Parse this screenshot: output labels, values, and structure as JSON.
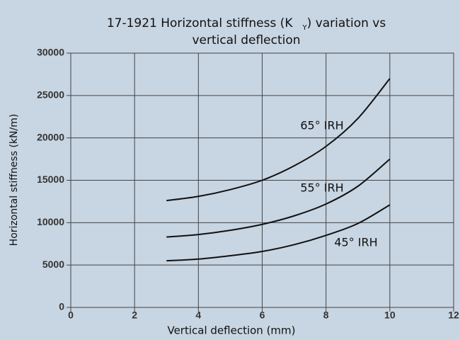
{
  "chart_data": {
    "type": "line",
    "title": "17-1921 Horizontal stiffness (K",
    "title_subscript": "Y",
    "title_suffix": ") variation vs",
    "title_line2": "vertical deflection",
    "x_label": "Vertical deflection (mm)",
    "y_label": "Horizontal stiffness (kN/m)",
    "x": [
      3,
      4,
      5,
      6,
      7,
      8,
      9,
      10
    ],
    "series": [
      {
        "name": "65° IRH",
        "color": "#111111",
        "values": [
          12600,
          13100,
          13900,
          15000,
          16700,
          19000,
          22300,
          27000
        ]
      },
      {
        "name": "55° IRH",
        "color": "#111111",
        "values": [
          8300,
          8600,
          9100,
          9800,
          10800,
          12200,
          14300,
          17500
        ]
      },
      {
        "name": "45° IRH",
        "color": "#111111",
        "values": [
          5500,
          5700,
          6100,
          6600,
          7400,
          8500,
          9900,
          12100
        ]
      }
    ],
    "xlim": [
      0,
      12
    ],
    "xticks": [
      0,
      2,
      4,
      6,
      8,
      10,
      12
    ],
    "ylim": [
      0,
      30000
    ],
    "yticks": [
      0,
      5000,
      10000,
      15000,
      20000,
      25000,
      30000
    ],
    "grid": true
  }
}
